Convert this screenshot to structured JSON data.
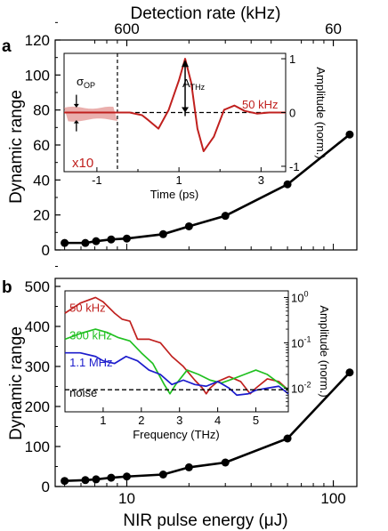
{
  "chart_data": [
    {
      "panel": "a",
      "type": "line",
      "ylabel": "Dynamic range",
      "top_xlabel": "Detection rate (kHz)",
      "top_tick_labels": [
        "600",
        "60"
      ],
      "yticks": [
        "0",
        "20",
        "40",
        "60",
        "80",
        "100",
        "120"
      ],
      "ylim": [
        0,
        120
      ],
      "xscale": "log",
      "xlim": [
        4.5,
        130
      ],
      "series": [
        {
          "x": [
            5,
            6.3,
            7.1,
            8.4,
            10,
            15,
            20,
            30,
            60,
            120
          ],
          "values": [
            4,
            4,
            5,
            6,
            6.5,
            9,
            13.5,
            19.5,
            37.5,
            66
          ]
        }
      ],
      "inset": {
        "type": "line",
        "xlabel": "Time (ps)",
        "ylabel": "Amplitude (norm.)",
        "xticks": [
          "-1",
          "1",
          "3"
        ],
        "yticks": [
          "-1",
          "0",
          "1"
        ],
        "xlim": [
          -1.8,
          3.6
        ],
        "ylim": [
          -1.1,
          1.1
        ],
        "label_rate": "50 kHz",
        "label_sigma": "σ",
        "label_sigma_sub": "OP",
        "label_amp": "A",
        "label_amp_sub": "THz",
        "label_scale": "x10",
        "series": [
          {
            "name": "50 kHz",
            "x": [
              -1.8,
              -0.5,
              -0.2,
              0.1,
              0.25,
              0.5,
              0.75,
              1.0,
              1.15,
              1.3,
              1.45,
              1.6,
              1.85,
              2.1,
              2.35,
              2.6,
              2.9,
              3.2,
              3.6
            ],
            "values": [
              0.0,
              0.0,
              0.0,
              -0.05,
              -0.14,
              -0.3,
              0.05,
              0.6,
              1.0,
              0.55,
              -0.3,
              -0.72,
              -0.45,
              0.05,
              0.13,
              0.03,
              -0.02,
              0.0,
              0.0
            ]
          }
        ]
      }
    },
    {
      "panel": "b",
      "type": "line",
      "xlabel": "NIR pulse energy (μJ)",
      "ylabel": "Dynamic range",
      "xticks": [
        "10",
        "100"
      ],
      "yticks": [
        "0",
        "100",
        "200",
        "300",
        "400",
        "500"
      ],
      "ylim": [
        0,
        520
      ],
      "xscale": "log",
      "xlim": [
        4.5,
        130
      ],
      "series": [
        {
          "x": [
            5,
            6.3,
            7.1,
            8.4,
            10,
            15,
            20,
            30,
            60,
            120
          ],
          "values": [
            14,
            16,
            18,
            22,
            25,
            30,
            48,
            60,
            120,
            285
          ]
        }
      ],
      "inset": {
        "type": "line",
        "xlabel": "Frequency (THz)",
        "ylabel": "Amplitude (norm.)",
        "xticks": [
          "1",
          "2",
          "3",
          "4",
          "5"
        ],
        "yticks": [
          "10",
          "10",
          "10"
        ],
        "ytick_exponents": [
          "0",
          "-1",
          "-2"
        ],
        "yscale": "log",
        "xlim": [
          0,
          5.85
        ],
        "ylim": [
          0.003,
          1.4
        ],
        "series": [
          {
            "name": "50 kHz",
            "color": "#c0201e",
            "x": [
              0.0,
              0.4,
              0.8,
              1.0,
              1.3,
              1.5,
              1.7,
              1.9,
              2.2,
              2.5,
              2.8,
              3.1,
              3.4,
              3.6,
              3.7,
              3.8,
              4.0,
              4.3,
              4.6,
              4.85,
              5.0,
              5.3,
              5.6,
              5.85
            ],
            "values": [
              0.45,
              0.75,
              1.0,
              0.8,
              0.45,
              0.33,
              0.3,
              0.12,
              0.12,
              0.1,
              0.05,
              0.03,
              0.015,
              0.01,
              0.0075,
              0.01,
              0.014,
              0.018,
              0.014,
              0.0075,
              0.01,
              0.016,
              0.014,
              0.009
            ]
          },
          {
            "name": "300 kHz",
            "color": "#21c021",
            "x": [
              0.0,
              0.4,
              0.8,
              1.1,
              1.4,
              1.7,
              2.0,
              2.3,
              2.6,
              2.75,
              2.9,
              3.2,
              3.5,
              3.8,
              4.1,
              4.4,
              4.7,
              5.0,
              5.3,
              5.6,
              5.85
            ],
            "values": [
              0.12,
              0.16,
              0.2,
              0.17,
              0.13,
              0.11,
              0.06,
              0.035,
              0.012,
              0.0075,
              0.012,
              0.025,
              0.02,
              0.015,
              0.013,
              0.016,
              0.02,
              0.025,
              0.02,
              0.013,
              0.009
            ]
          },
          {
            "name": "1.1 MHz",
            "color": "#1c1ccc",
            "x": [
              0.0,
              0.4,
              0.8,
              1.0,
              1.3,
              1.6,
              1.9,
              2.2,
              2.5,
              2.8,
              3.1,
              3.4,
              3.7,
              4.0,
              4.3,
              4.5,
              4.8,
              5.0,
              5.3,
              5.6,
              5.85
            ],
            "values": [
              0.06,
              0.06,
              0.05,
              0.04,
              0.035,
              0.05,
              0.04,
              0.025,
              0.02,
              0.012,
              0.015,
              0.012,
              0.011,
              0.014,
              0.01,
              0.007,
              0.0075,
              0.009,
              0.01,
              0.011,
              0.0075
            ]
          },
          {
            "name": "noise",
            "color": "#000000",
            "dashed": true,
            "x": [
              0.0,
              5.85
            ],
            "values": [
              0.0092,
              0.0092
            ]
          }
        ]
      }
    }
  ]
}
